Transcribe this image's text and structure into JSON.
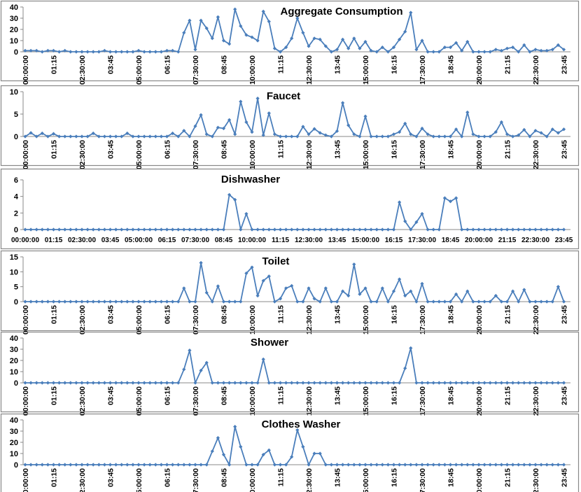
{
  "chart_data": [
    {
      "type": "line",
      "title": "Aggregate Consumption",
      "color": "#4a7ebb",
      "ylim": [
        0,
        40
      ],
      "yticks": [
        0,
        10,
        20,
        30,
        40
      ],
      "categories": [
        "00:00:00",
        null,
        null,
        null,
        null,
        "01:15",
        null,
        null,
        null,
        null,
        "02:30:00",
        null,
        null,
        null,
        null,
        "03:45",
        null,
        null,
        null,
        null,
        "05:00:00",
        null,
        null,
        null,
        null,
        "06:15",
        null,
        null,
        null,
        null,
        "07:30:00",
        null,
        null,
        null,
        null,
        "08:45",
        null,
        null,
        null,
        null,
        "10:00:00",
        null,
        null,
        null,
        null,
        "11:15",
        null,
        null,
        null,
        null,
        "12:30:00",
        null,
        null,
        null,
        null,
        "13:45",
        null,
        null,
        null,
        null,
        "15:00:00",
        null,
        null,
        null,
        null,
        "16:15",
        null,
        null,
        null,
        null,
        "17:30:00",
        null,
        null,
        null,
        null,
        "18:45",
        null,
        null,
        null,
        null,
        "20:00:00",
        null,
        null,
        null,
        null,
        "21:15",
        null,
        null,
        null,
        null,
        "22:30:00",
        null,
        null,
        null,
        null,
        "23:45"
      ],
      "values": [
        1,
        1,
        1,
        0,
        1,
        1,
        0,
        1,
        0,
        0,
        0,
        0,
        0,
        0,
        1,
        0,
        0,
        0,
        0,
        0,
        1,
        0,
        0,
        0,
        0,
        1,
        1,
        0,
        17,
        28,
        2,
        28,
        21,
        12,
        31,
        10,
        7,
        38,
        23,
        15,
        13,
        10,
        36,
        27,
        3,
        0,
        4,
        12,
        30,
        17,
        5,
        12,
        11,
        5,
        0,
        2,
        11,
        3,
        12,
        3,
        9,
        1,
        0,
        4,
        0,
        4,
        11,
        18,
        35,
        2,
        10,
        0,
        0,
        0,
        4,
        4,
        8,
        1,
        9,
        0,
        0,
        0,
        0,
        2,
        1,
        3,
        4,
        0,
        6,
        0,
        2,
        1,
        1,
        2,
        6,
        2
      ]
    },
    {
      "type": "line",
      "title": "Faucet",
      "color": "#4a7ebb",
      "ylim": [
        0,
        10
      ],
      "yticks": [
        0,
        5,
        10
      ],
      "categories": [
        "00:00:00",
        null,
        null,
        null,
        null,
        "01:15",
        null,
        null,
        null,
        null,
        "02:30:00",
        null,
        null,
        null,
        null,
        "03:45",
        null,
        null,
        null,
        null,
        "05:00:00",
        null,
        null,
        null,
        null,
        "06:15",
        null,
        null,
        null,
        null,
        "07:30:00",
        null,
        null,
        null,
        null,
        "08:45",
        null,
        null,
        null,
        null,
        "10:00:00",
        null,
        null,
        null,
        null,
        "11:15",
        null,
        null,
        null,
        null,
        "12:30:00",
        null,
        null,
        null,
        null,
        "13:45",
        null,
        null,
        null,
        null,
        "15:00:00",
        null,
        null,
        null,
        null,
        "16:15",
        null,
        null,
        null,
        null,
        "17:30:00",
        null,
        null,
        null,
        null,
        "18:45",
        null,
        null,
        null,
        null,
        "20:00:00",
        null,
        null,
        null,
        null,
        "21:15",
        null,
        null,
        null,
        null,
        "22:30:00",
        null,
        null,
        null,
        null,
        "23:45"
      ],
      "values": [
        0,
        0.8,
        0,
        0.7,
        0,
        0.6,
        0,
        0,
        0,
        0,
        0,
        0,
        0.7,
        0,
        0,
        0,
        0,
        0,
        0.7,
        0,
        0,
        0,
        0,
        0,
        0,
        0,
        0.7,
        0,
        1.3,
        0,
        2.3,
        4.8,
        0.5,
        0,
        2,
        1.8,
        3.7,
        0.5,
        7.8,
        3.2,
        1,
        8.5,
        0.3,
        5.2,
        0.5,
        0,
        0,
        0,
        0,
        2.2,
        0.5,
        1.7,
        0.8,
        0.3,
        0,
        1.2,
        7.5,
        2.5,
        0.5,
        0,
        4.5,
        0,
        0,
        0,
        0,
        0.5,
        1,
        2.9,
        0.5,
        0,
        1.8,
        0.5,
        0,
        0,
        0,
        0,
        1.6,
        0,
        5.4,
        0.5,
        0,
        0,
        0,
        1,
        3.2,
        0.5,
        0,
        0.3,
        1.5,
        0,
        1.3,
        0.8,
        0,
        1.6,
        0.8,
        1.6
      ]
    },
    {
      "type": "line",
      "title": "Dishwasher",
      "color": "#4a7ebb",
      "ylim": [
        0,
        6
      ],
      "yticks": [
        0,
        2,
        4,
        6
      ],
      "categories": [
        "00:00:00",
        null,
        null,
        null,
        null,
        "01:15",
        null,
        null,
        null,
        null,
        "02:30:00",
        null,
        null,
        null,
        null,
        "03:45",
        null,
        null,
        null,
        null,
        "05:00:00",
        null,
        null,
        null,
        null,
        "06:15",
        null,
        null,
        null,
        null,
        "07:30:00",
        null,
        null,
        null,
        null,
        "08:45",
        null,
        null,
        null,
        null,
        "10:00:00",
        null,
        null,
        null,
        null,
        "11:15",
        null,
        null,
        null,
        null,
        "12:30:00",
        null,
        null,
        null,
        null,
        "13:45",
        null,
        null,
        null,
        null,
        "15:00:00",
        null,
        null,
        null,
        null,
        "16:15",
        null,
        null,
        null,
        null,
        "17:30:00",
        null,
        null,
        null,
        null,
        "18:45",
        null,
        null,
        null,
        null,
        "20:00:00",
        null,
        null,
        null,
        null,
        "21:15",
        null,
        null,
        null,
        null,
        "22:30:00",
        null,
        null,
        null,
        null,
        "23:45"
      ],
      "values": [
        0,
        0,
        0,
        0,
        0,
        0,
        0,
        0,
        0,
        0,
        0,
        0,
        0,
        0,
        0,
        0,
        0,
        0,
        0,
        0,
        0,
        0,
        0,
        0,
        0,
        0,
        0,
        0,
        0,
        0,
        0,
        0,
        0,
        0,
        0,
        0,
        4.2,
        3.6,
        0,
        1.9,
        0,
        0,
        0,
        0,
        0,
        0,
        0,
        0,
        0,
        0,
        0,
        0,
        0,
        0,
        0,
        0,
        0,
        0,
        0,
        0,
        0,
        0,
        0,
        0,
        0,
        0,
        3.3,
        1,
        0,
        0.9,
        1.9,
        0,
        0,
        0,
        3.8,
        3.4,
        3.8,
        0,
        0,
        0,
        0,
        0,
        0,
        0,
        0,
        0,
        0,
        0,
        0,
        0,
        0,
        0,
        0,
        0,
        0,
        0
      ]
    },
    {
      "type": "line",
      "title": "Toilet",
      "color": "#4a7ebb",
      "ylim": [
        0,
        15
      ],
      "yticks": [
        0,
        5,
        10,
        15
      ],
      "categories": [
        "00:00:00",
        null,
        null,
        null,
        null,
        "01:15",
        null,
        null,
        null,
        null,
        "02:30:00",
        null,
        null,
        null,
        null,
        "03:45",
        null,
        null,
        null,
        null,
        "05:00:00",
        null,
        null,
        null,
        null,
        "06:15",
        null,
        null,
        null,
        null,
        "07:30:00",
        null,
        null,
        null,
        null,
        "08:45",
        null,
        null,
        null,
        null,
        "10:00:00",
        null,
        null,
        null,
        null,
        "11:15",
        null,
        null,
        null,
        null,
        "12:30:00",
        null,
        null,
        null,
        null,
        "13:45",
        null,
        null,
        null,
        null,
        "15:00:00",
        null,
        null,
        null,
        null,
        "16:15",
        null,
        null,
        null,
        null,
        "17:30:00",
        null,
        null,
        null,
        null,
        "18:45",
        null,
        null,
        null,
        null,
        "20:00:00",
        null,
        null,
        null,
        null,
        "21:15",
        null,
        null,
        null,
        null,
        "22:30:00",
        null,
        null,
        null,
        null,
        "23:45"
      ],
      "values": [
        0,
        0,
        0,
        0,
        0,
        0,
        0,
        0,
        0,
        0,
        0,
        0,
        0,
        0,
        0,
        0,
        0,
        0,
        0,
        0,
        0,
        0,
        0,
        0,
        0,
        0,
        0,
        0,
        4.5,
        0,
        0,
        13,
        3,
        0,
        5.2,
        0,
        0,
        0,
        0,
        9.5,
        11.5,
        2,
        7,
        8.5,
        0,
        1,
        4.5,
        5.3,
        0,
        0,
        4.5,
        1,
        0,
        4.5,
        0,
        0,
        3.5,
        2,
        12.5,
        2.5,
        4.5,
        0,
        0,
        4.5,
        0,
        3.5,
        7.5,
        2,
        3.5,
        0,
        6,
        0,
        0,
        0,
        0,
        0,
        2.5,
        0,
        3.5,
        0,
        0,
        0,
        0,
        2,
        0,
        0,
        3.5,
        0,
        4,
        0,
        0,
        0,
        0,
        0,
        5,
        0
      ]
    },
    {
      "type": "line",
      "title": "Shower",
      "color": "#4a7ebb",
      "ylim": [
        0,
        40
      ],
      "yticks": [
        0,
        10,
        20,
        30,
        40
      ],
      "categories": [
        "00:00:00",
        null,
        null,
        null,
        null,
        "01:15",
        null,
        null,
        null,
        null,
        "02:30:00",
        null,
        null,
        null,
        null,
        "03:45",
        null,
        null,
        null,
        null,
        "05:00:00",
        null,
        null,
        null,
        null,
        "06:15",
        null,
        null,
        null,
        null,
        "07:30:00",
        null,
        null,
        null,
        null,
        "08:45",
        null,
        null,
        null,
        null,
        "10:00:00",
        null,
        null,
        null,
        null,
        "11:15",
        null,
        null,
        null,
        null,
        "12:30:00",
        null,
        null,
        null,
        null,
        "13:45",
        null,
        null,
        null,
        null,
        "15:00:00",
        null,
        null,
        null,
        null,
        "16:15",
        null,
        null,
        null,
        null,
        "17:30:00",
        null,
        null,
        null,
        null,
        "18:45",
        null,
        null,
        null,
        null,
        "20:00:00",
        null,
        null,
        null,
        null,
        "21:15",
        null,
        null,
        null,
        null,
        "22:30:00",
        null,
        null,
        null,
        null,
        "23:45"
      ],
      "values": [
        0,
        0,
        0,
        0,
        0,
        0,
        0,
        0,
        0,
        0,
        0,
        0,
        0,
        0,
        0,
        0,
        0,
        0,
        0,
        0,
        0,
        0,
        0,
        0,
        0,
        0,
        0,
        0,
        12,
        29,
        0,
        11,
        18,
        0,
        0,
        0,
        0,
        0,
        0,
        0,
        0,
        0,
        21,
        0,
        0,
        0,
        0,
        0,
        0,
        0,
        0,
        0,
        0,
        0,
        0,
        0,
        0,
        0,
        0,
        0,
        0,
        0,
        0,
        0,
        0,
        0,
        0,
        13,
        31,
        0,
        0,
        0,
        0,
        0,
        0,
        0,
        0,
        0,
        0,
        0,
        0,
        0,
        0,
        0,
        0,
        0,
        0,
        0,
        0,
        0,
        0,
        0,
        0,
        0,
        0,
        0
      ]
    },
    {
      "type": "line",
      "title": "Clothes Washer",
      "color": "#4a7ebb",
      "ylim": [
        0,
        40
      ],
      "yticks": [
        0,
        10,
        20,
        30,
        40
      ],
      "categories": [
        "00:00:00",
        null,
        null,
        null,
        null,
        "01:15",
        null,
        null,
        null,
        null,
        "02:30:00",
        null,
        null,
        null,
        null,
        "03:45",
        null,
        null,
        null,
        null,
        "05:00:00",
        null,
        null,
        null,
        null,
        "06:15",
        null,
        null,
        null,
        null,
        "07:30:00",
        null,
        null,
        null,
        null,
        "08:45",
        null,
        null,
        null,
        null,
        "10:00:00",
        null,
        null,
        null,
        null,
        "11:15",
        null,
        null,
        null,
        null,
        "12:30:00",
        null,
        null,
        null,
        null,
        "13:45",
        null,
        null,
        null,
        null,
        "15:00:00",
        null,
        null,
        null,
        null,
        "16:15",
        null,
        null,
        null,
        null,
        "17:30:00",
        null,
        null,
        null,
        null,
        "18:45",
        null,
        null,
        null,
        null,
        "20:00:00",
        null,
        null,
        null,
        null,
        "21:15",
        null,
        null,
        null,
        null,
        "22:30:00",
        null,
        null,
        null,
        null,
        "23:45"
      ],
      "values": [
        0,
        0,
        0,
        0,
        0,
        0,
        0,
        0,
        0,
        0,
        0,
        0,
        0,
        0,
        0,
        0,
        0,
        0,
        0,
        0,
        0,
        0,
        0,
        0,
        0,
        0,
        0,
        0,
        0,
        0,
        0,
        0,
        0,
        12,
        24,
        9,
        0,
        34,
        16,
        0,
        0,
        0,
        9,
        13,
        0,
        0,
        0,
        7,
        31,
        16,
        0,
        10,
        10,
        0,
        0,
        0,
        0,
        0,
        0,
        0,
        0,
        0,
        0,
        0,
        0,
        0,
        0,
        0,
        0,
        0,
        0,
        0,
        0,
        0,
        0,
        0,
        0,
        0,
        0,
        0,
        0,
        0,
        0,
        0,
        0,
        0,
        0,
        0,
        0,
        0,
        0,
        0,
        0,
        0,
        0,
        0
      ]
    }
  ]
}
